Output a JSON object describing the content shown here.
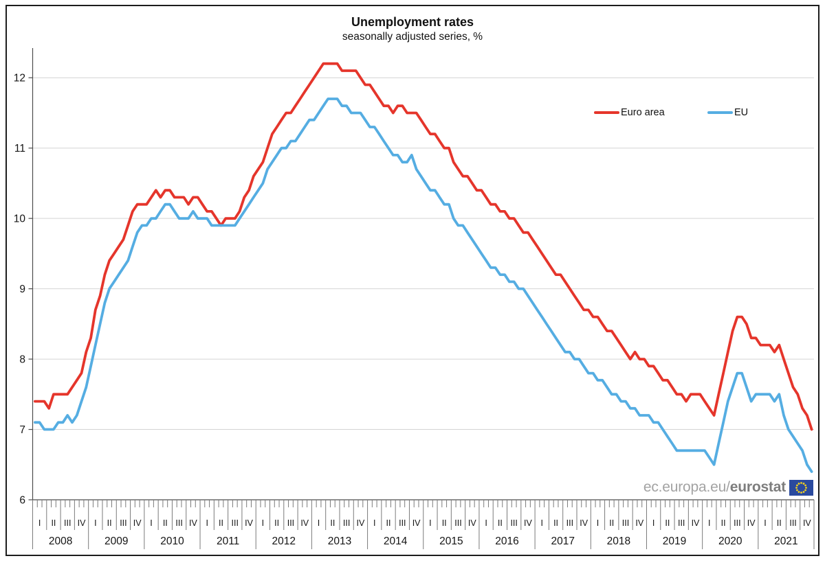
{
  "window": {
    "background": "#ffffff",
    "frame_border_color": "#1c1c1c"
  },
  "header": {
    "title": "Unemployment rates",
    "subtitle": "seasonally adjusted series, %"
  },
  "legend": {
    "items": [
      {
        "label": "Euro area",
        "color": "#e5352b"
      },
      {
        "label": "EU",
        "color": "#55ade2"
      }
    ]
  },
  "watermark": {
    "prefix": "ec.europa.eu/",
    "bold": "eurostat",
    "flag_color": "#2a4a9e",
    "star_color": "#f0cf1f"
  },
  "chart_data": {
    "type": "line",
    "title": "Unemployment rates",
    "subtitle": "seasonally adjusted series, %",
    "frequency": "monthly",
    "x_start": "2008-01",
    "x_end": "2021-12",
    "years": [
      "2008",
      "2009",
      "2010",
      "2011",
      "2012",
      "2013",
      "2014",
      "2015",
      "2016",
      "2017",
      "2018",
      "2019",
      "2020",
      "2021"
    ],
    "quarter_labels": [
      "I",
      "II",
      "III",
      "IV"
    ],
    "ylabel": "",
    "ylim": [
      6,
      12.4
    ],
    "yticks": [
      6,
      7,
      8,
      9,
      10,
      11,
      12
    ],
    "grid": "horizontal",
    "legend_position": "top-right-inside",
    "axis_color": "#4d4d4d",
    "grid_color": "#d4d4d4",
    "tick_color": "#7a7a7a",
    "series": [
      {
        "name": "Euro area",
        "color": "#e5352b",
        "values": [
          7.4,
          7.4,
          7.4,
          7.3,
          7.5,
          7.5,
          7.5,
          7.5,
          7.6,
          7.7,
          7.8,
          8.1,
          8.3,
          8.7,
          8.9,
          9.2,
          9.4,
          9.5,
          9.6,
          9.7,
          9.9,
          10.1,
          10.2,
          10.2,
          10.2,
          10.3,
          10.4,
          10.3,
          10.4,
          10.4,
          10.3,
          10.3,
          10.3,
          10.2,
          10.3,
          10.3,
          10.2,
          10.1,
          10.1,
          10.0,
          9.9,
          10.0,
          10.0,
          10.0,
          10.1,
          10.3,
          10.4,
          10.6,
          10.7,
          10.8,
          11.0,
          11.2,
          11.3,
          11.4,
          11.5,
          11.5,
          11.6,
          11.7,
          11.8,
          11.9,
          12.0,
          12.1,
          12.2,
          12.2,
          12.2,
          12.2,
          12.1,
          12.1,
          12.1,
          12.1,
          12.0,
          11.9,
          11.9,
          11.8,
          11.7,
          11.6,
          11.6,
          11.5,
          11.6,
          11.6,
          11.5,
          11.5,
          11.5,
          11.4,
          11.3,
          11.2,
          11.2,
          11.1,
          11.0,
          11.0,
          10.8,
          10.7,
          10.6,
          10.6,
          10.5,
          10.4,
          10.4,
          10.3,
          10.2,
          10.2,
          10.1,
          10.1,
          10.0,
          10.0,
          9.9,
          9.8,
          9.8,
          9.7,
          9.6,
          9.5,
          9.4,
          9.3,
          9.2,
          9.2,
          9.1,
          9.0,
          8.9,
          8.8,
          8.7,
          8.7,
          8.6,
          8.6,
          8.5,
          8.4,
          8.4,
          8.3,
          8.2,
          8.1,
          8.0,
          8.1,
          8.0,
          8.0,
          7.9,
          7.9,
          7.8,
          7.7,
          7.7,
          7.6,
          7.5,
          7.5,
          7.4,
          7.5,
          7.5,
          7.5,
          7.4,
          7.3,
          7.2,
          7.5,
          7.8,
          8.1,
          8.4,
          8.6,
          8.6,
          8.5,
          8.3,
          8.3,
          8.2,
          8.2,
          8.2,
          8.1,
          8.2,
          8.0,
          7.8,
          7.6,
          7.5,
          7.3,
          7.2,
          7.0
        ]
      },
      {
        "name": "EU",
        "color": "#55ade2",
        "values": [
          7.1,
          7.1,
          7.0,
          7.0,
          7.0,
          7.1,
          7.1,
          7.2,
          7.1,
          7.2,
          7.4,
          7.6,
          7.9,
          8.2,
          8.5,
          8.8,
          9.0,
          9.1,
          9.2,
          9.3,
          9.4,
          9.6,
          9.8,
          9.9,
          9.9,
          10.0,
          10.0,
          10.1,
          10.2,
          10.2,
          10.1,
          10.0,
          10.0,
          10.0,
          10.1,
          10.0,
          10.0,
          10.0,
          9.9,
          9.9,
          9.9,
          9.9,
          9.9,
          9.9,
          10.0,
          10.1,
          10.2,
          10.3,
          10.4,
          10.5,
          10.7,
          10.8,
          10.9,
          11.0,
          11.0,
          11.1,
          11.1,
          11.2,
          11.3,
          11.4,
          11.4,
          11.5,
          11.6,
          11.7,
          11.7,
          11.7,
          11.6,
          11.6,
          11.5,
          11.5,
          11.5,
          11.4,
          11.3,
          11.3,
          11.2,
          11.1,
          11.0,
          10.9,
          10.9,
          10.8,
          10.8,
          10.9,
          10.7,
          10.6,
          10.5,
          10.4,
          10.4,
          10.3,
          10.2,
          10.2,
          10.0,
          9.9,
          9.9,
          9.8,
          9.7,
          9.6,
          9.5,
          9.4,
          9.3,
          9.3,
          9.2,
          9.2,
          9.1,
          9.1,
          9.0,
          9.0,
          8.9,
          8.8,
          8.7,
          8.6,
          8.5,
          8.4,
          8.3,
          8.2,
          8.1,
          8.1,
          8.0,
          8.0,
          7.9,
          7.8,
          7.8,
          7.7,
          7.7,
          7.6,
          7.5,
          7.5,
          7.4,
          7.4,
          7.3,
          7.3,
          7.2,
          7.2,
          7.2,
          7.1,
          7.1,
          7.0,
          6.9,
          6.8,
          6.7,
          6.7,
          6.7,
          6.7,
          6.7,
          6.7,
          6.7,
          6.6,
          6.5,
          6.8,
          7.1,
          7.4,
          7.6,
          7.8,
          7.8,
          7.6,
          7.4,
          7.5,
          7.5,
          7.5,
          7.5,
          7.4,
          7.5,
          7.2,
          7.0,
          6.9,
          6.8,
          6.7,
          6.5,
          6.4
        ]
      }
    ]
  }
}
